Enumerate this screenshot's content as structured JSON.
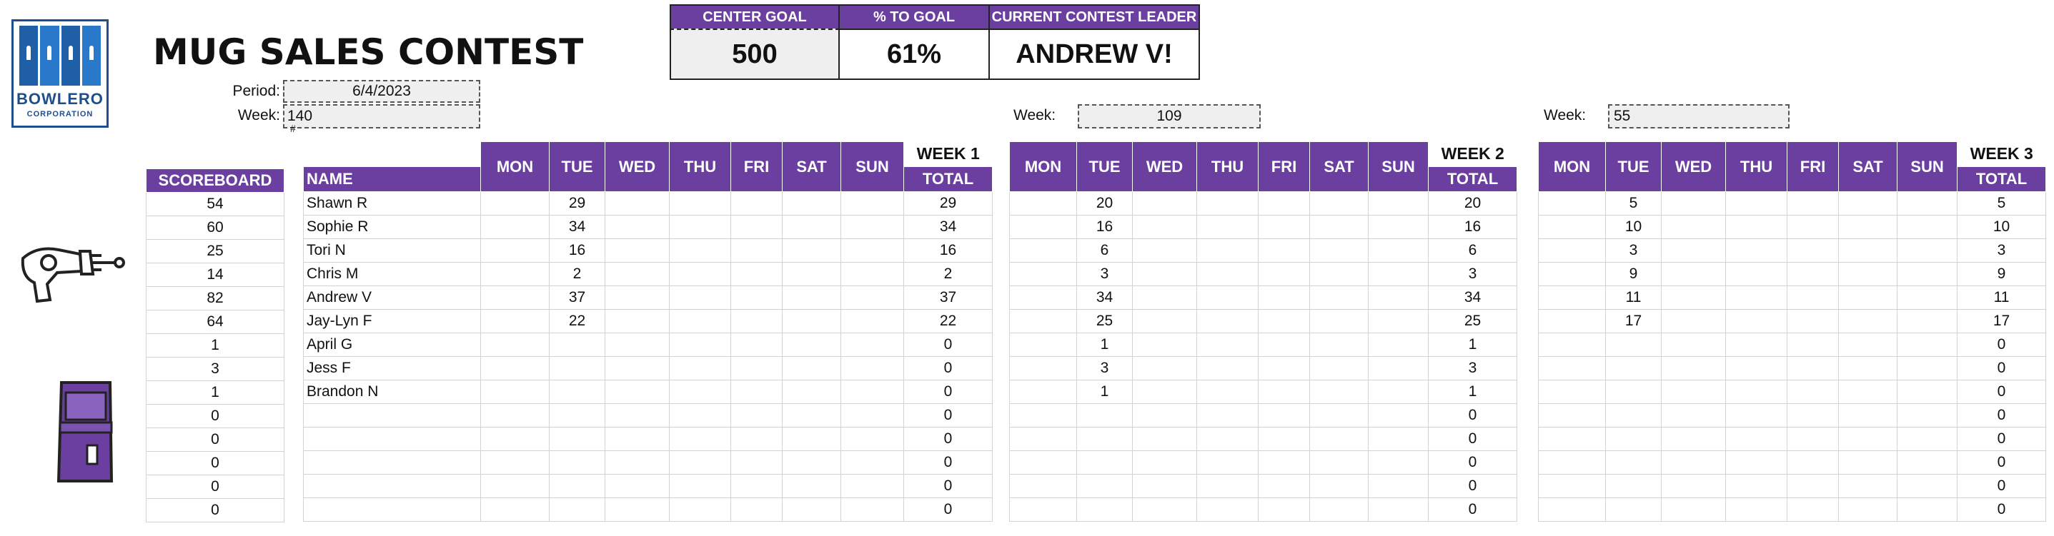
{
  "logo": {
    "name": "BOWLERO",
    "sub": "CORPORATION"
  },
  "title": "MUG SALES CONTEST",
  "period": {
    "label": "Period:",
    "value": "6/4/2023"
  },
  "week_totals": [
    {
      "label": "Week:",
      "value": "140"
    },
    {
      "label": "Week:",
      "value": "109"
    },
    {
      "label": "Week:",
      "value": "55"
    }
  ],
  "hash_mark": "#",
  "summary": {
    "center_goal_label": "CENTER GOAL",
    "center_goal": "500",
    "pct_label": "% TO GOAL",
    "pct": "61%",
    "leader_label": "CURRENT CONTEST LEADER",
    "leader": "ANDREW V!"
  },
  "scoreboard": {
    "header": "SCOREBOARD",
    "values": [
      "54",
      "60",
      "25",
      "14",
      "82",
      "64",
      "1",
      "3",
      "1",
      "0",
      "0",
      "0",
      "0",
      "0"
    ]
  },
  "name_header": "NAME",
  "days": [
    "MON",
    "TUE",
    "WED",
    "THU",
    "FRI",
    "SAT",
    "SUN"
  ],
  "total_label": "TOTAL",
  "names": [
    "Shawn R",
    "Sophie R",
    "Tori N",
    "Chris M",
    "Andrew V",
    "Jay-Lyn F",
    "April G",
    "Jess F",
    "Brandon N",
    "",
    "",
    "",
    "",
    ""
  ],
  "weeks": [
    {
      "label": "WEEK 1",
      "tue": [
        "29",
        "34",
        "16",
        "2",
        "37",
        "22",
        "",
        "",
        "",
        "",
        "",
        "",
        "",
        ""
      ],
      "totals": [
        "29",
        "34",
        "16",
        "2",
        "37",
        "22",
        "0",
        "0",
        "0",
        "0",
        "0",
        "0",
        "0",
        "0"
      ]
    },
    {
      "label": "WEEK 2",
      "tue": [
        "20",
        "16",
        "6",
        "3",
        "34",
        "25",
        "1",
        "3",
        "1",
        "",
        "",
        "",
        "",
        ""
      ],
      "totals": [
        "20",
        "16",
        "6",
        "3",
        "34",
        "25",
        "1",
        "3",
        "1",
        "0",
        "0",
        "0",
        "0",
        "0"
      ]
    },
    {
      "label": "WEEK 3",
      "tue": [
        "5",
        "10",
        "3",
        "9",
        "11",
        "17",
        "",
        "",
        "",
        "",
        "",
        "",
        "",
        ""
      ],
      "totals": [
        "5",
        "10",
        "3",
        "9",
        "11",
        "17",
        "0",
        "0",
        "0",
        "0",
        "0",
        "0",
        "0",
        "0"
      ]
    }
  ],
  "decorations": [
    "raygun-icon",
    "arcade-cabinet-icon"
  ]
}
